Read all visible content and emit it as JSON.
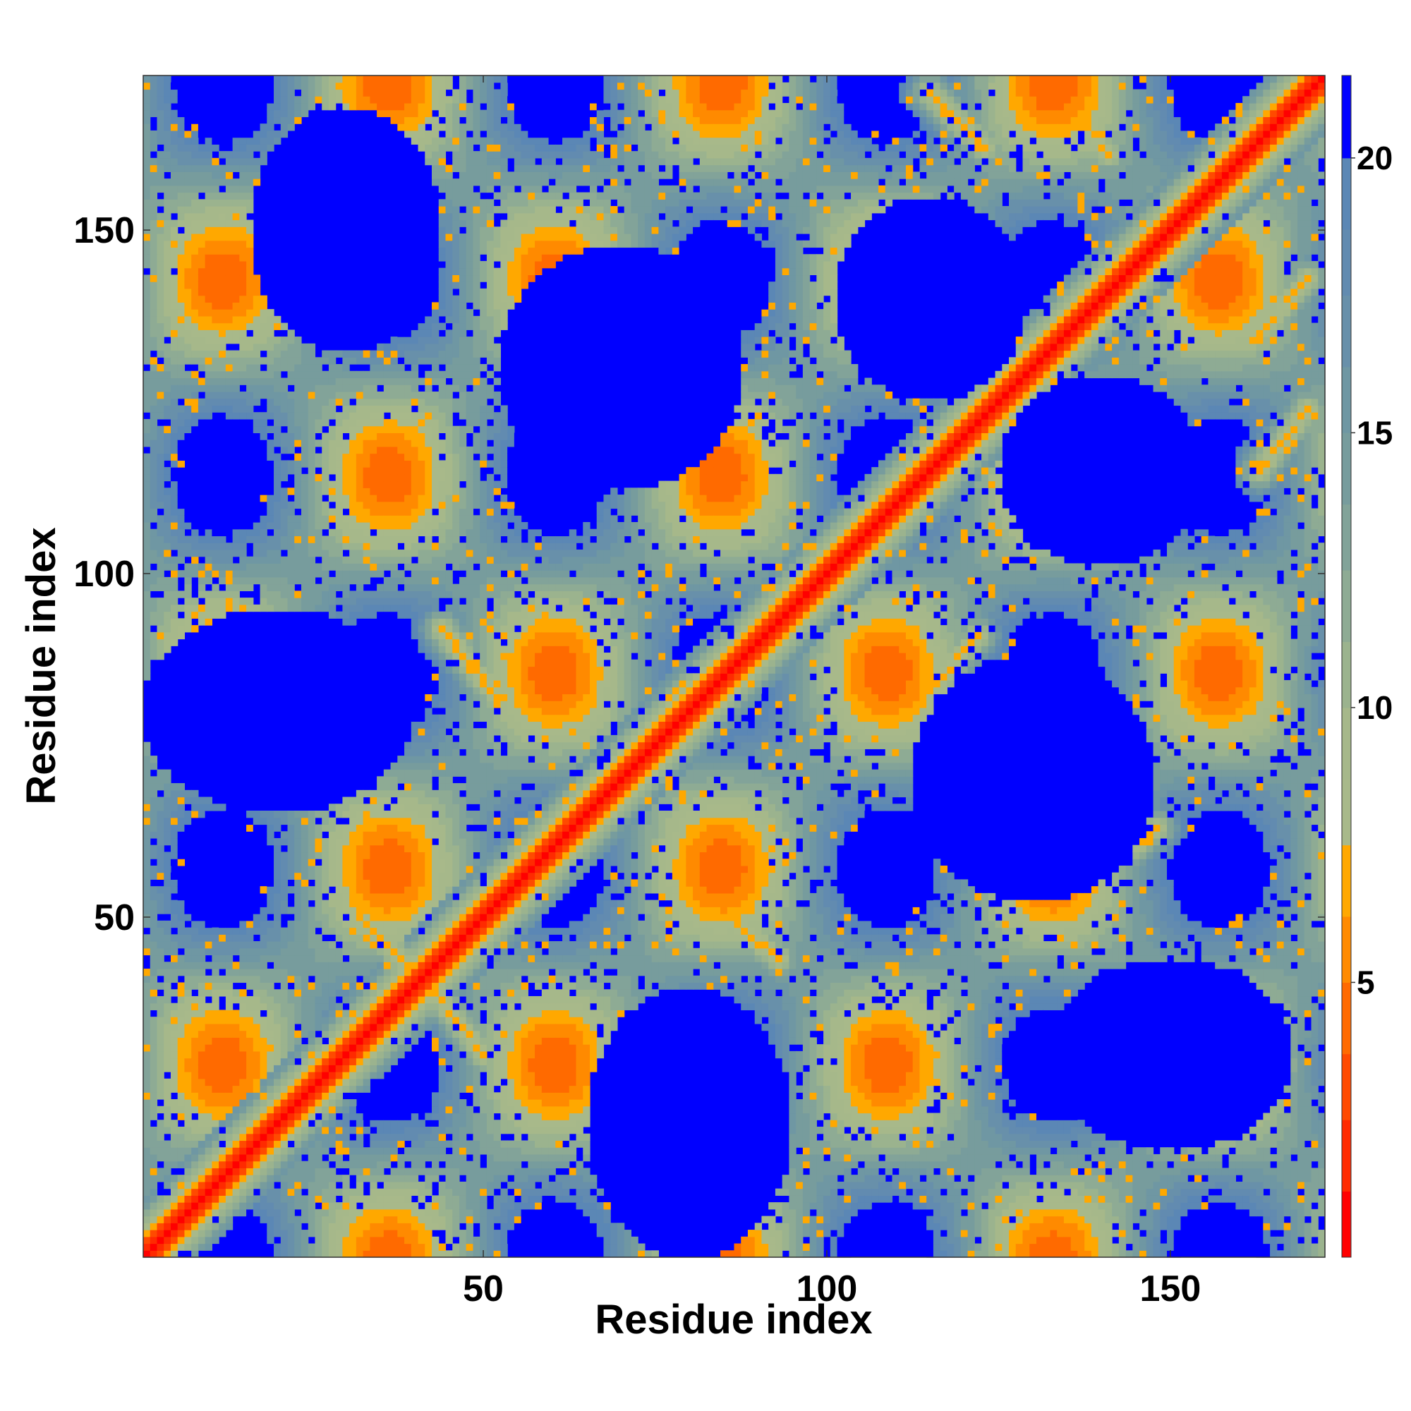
{
  "chart_data": {
    "type": "heatmap",
    "title": "",
    "xlabel": "Residue index",
    "ylabel": "Residue index",
    "n_residues": 172,
    "xlim": [
      1,
      172
    ],
    "ylim": [
      1,
      172
    ],
    "x_ticks": [
      50,
      100,
      150
    ],
    "x_tick_labels": [
      "50",
      "100",
      "150"
    ],
    "y_ticks": [
      50,
      100,
      150
    ],
    "y_tick_labels": [
      "50",
      "100",
      "150"
    ],
    "colorbar": {
      "range": [
        0,
        21.5
      ],
      "ticks": [
        5,
        10,
        15,
        20
      ],
      "tick_labels": [
        "5",
        "10",
        "15",
        "20"
      ],
      "levels": [
        {
          "max": 1.2,
          "color": "#ff0000"
        },
        {
          "max": 2.5,
          "color": "#ff2a00"
        },
        {
          "max": 3.7,
          "color": "#ff4a00"
        },
        {
          "max": 5.0,
          "color": "#ff6a00"
        },
        {
          "max": 6.2,
          "color": "#ff8a00"
        },
        {
          "max": 7.5,
          "color": "#ffa800"
        },
        {
          "max": 8.7,
          "color": "#a8b98a"
        },
        {
          "max": 10.0,
          "color": "#a6b88a"
        },
        {
          "max": 11.2,
          "color": "#9bb38e"
        },
        {
          "max": 12.5,
          "color": "#8eab94"
        },
        {
          "max": 13.7,
          "color": "#82a399"
        },
        {
          "max": 15.0,
          "color": "#779c9d"
        },
        {
          "max": 16.2,
          "color": "#6f97a3"
        },
        {
          "max": 17.5,
          "color": "#6890aa"
        },
        {
          "max": 18.7,
          "color": "#628bb0"
        },
        {
          "max": 20.0,
          "color": "#5b87b5"
        },
        {
          "max": 21.5,
          "color": "#0000ff"
        }
      ]
    },
    "features": {
      "diagonal": {
        "description": "near-zero distance along i=j"
      },
      "antiparallel_contacts": [
        {
          "i_start": 32,
          "j_start": 50,
          "i_end": 42,
          "j_end": 40,
          "value": 6.5
        },
        {
          "i_start": 43,
          "j_start": 39,
          "i_end": 50,
          "j_end": 30,
          "value": 6.5
        },
        {
          "i_start": 44,
          "j_start": 92,
          "i_end": 52,
          "j_end": 82,
          "value": 6.5
        },
        {
          "i_start": 83,
          "j_start": 52,
          "i_end": 93,
          "j_end": 44,
          "value": 6.5
        },
        {
          "i_start": 82,
          "j_start": 115,
          "i_end": 90,
          "j_end": 123,
          "value": 6.5
        },
        {
          "i_start": 115,
          "j_start": 83,
          "i_end": 122,
          "j_end": 91,
          "value": 6.5
        },
        {
          "i_start": 115,
          "j_start": 170,
          "i_end": 123,
          "j_end": 162,
          "value": 6.5
        },
        {
          "i_start": 134,
          "j_start": 170,
          "i_end": 141,
          "j_end": 161,
          "value": 6.5
        },
        {
          "i_start": 163,
          "j_start": 115,
          "i_end": 170,
          "j_end": 124,
          "value": 6.5
        },
        {
          "i_start": 162,
          "j_start": 134,
          "i_end": 170,
          "j_end": 143,
          "value": 6.5
        }
      ],
      "parallel_contacts": [
        {
          "i_start": 22,
          "j_start": 155,
          "i_end": 26,
          "j_end": 159,
          "value": 5.5
        },
        {
          "i_start": 152,
          "j_start": 22,
          "i_end": 157,
          "j_end": 26,
          "value": 5.5
        },
        {
          "i_start": 59,
          "j_start": 145,
          "i_end": 63,
          "j_end": 150,
          "value": 6.5
        },
        {
          "i_start": 143,
          "j_start": 59,
          "i_end": 148,
          "j_end": 63,
          "value": 6.5
        }
      ],
      "empty_regions": [
        {
          "ci": 20,
          "cj": 80,
          "rx": 20,
          "ry": 15
        },
        {
          "ci": 80,
          "cj": 20,
          "rx": 15,
          "ry": 20
        },
        {
          "ci": 70,
          "cj": 130,
          "rx": 18,
          "ry": 18
        },
        {
          "ci": 130,
          "cj": 70,
          "rx": 18,
          "ry": 18
        },
        {
          "ci": 115,
          "cj": 140,
          "rx": 14,
          "ry": 15
        },
        {
          "ci": 140,
          "cj": 115,
          "rx": 15,
          "ry": 14
        },
        {
          "ci": 150,
          "cj": 30,
          "rx": 18,
          "ry": 14
        },
        {
          "ci": 30,
          "cj": 150,
          "rx": 14,
          "ry": 18
        }
      ]
    }
  }
}
